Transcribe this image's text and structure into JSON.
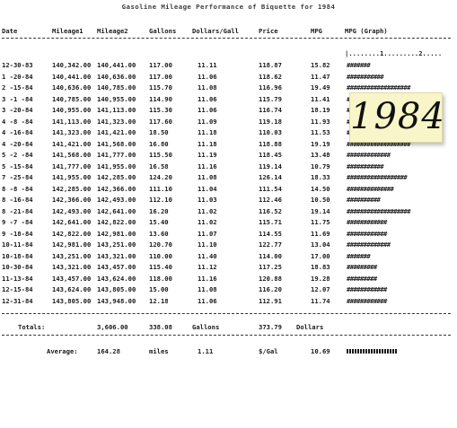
{
  "title": "Gasoline Mileage Performance of Biquette for 1984",
  "headers": [
    "Date",
    "Mileage1",
    "Mileage2",
    "Gallons",
    "Dollars/Gall",
    "Price",
    "MPG",
    "MPG (Graph)"
  ],
  "graph_axis": "|........1.........2.....",
  "rows": [
    [
      "12-30-83",
      "140,342.00",
      "140,441.00",
      "117.00",
      "11.11",
      "118.87",
      "15.82",
      "#######"
    ],
    [
      "1 -20-84",
      "140,441.00",
      "140,636.00",
      "117.00",
      "11.06",
      "118.62",
      "11.47",
      "###########"
    ],
    [
      "2 -15-84",
      "140,636.00",
      "140,785.00",
      "115.70",
      "11.08",
      "116.96",
      "19.49",
      "###################"
    ],
    [
      "3 -1 -84",
      "140,785.00",
      "140,955.00",
      "114.90",
      "11.06",
      "115.79",
      "11.41",
      "###########"
    ],
    [
      "3 -20-84",
      "140,955.00",
      "141,113.00",
      "115.30",
      "11.06",
      "116.74",
      "18.19",
      "##################"
    ],
    [
      "4 -8 -84",
      "141,113.00",
      "141,323.00",
      "117.60",
      "11.09",
      "119.18",
      "11.93",
      "############"
    ],
    [
      "4 -16-84",
      "141,323.00",
      "141,421.00",
      "18.50",
      "11.18",
      "110.03",
      "11.53",
      "############"
    ],
    [
      "4 -20-84",
      "141,421.00",
      "141,568.00",
      "16.80",
      "11.18",
      "118.88",
      "19.19",
      "###################"
    ],
    [
      "5 -2 -84",
      "141,568.00",
      "141,777.00",
      "115.50",
      "11.19",
      "118.45",
      "13.48",
      "#############"
    ],
    [
      "5 -15-84",
      "141,777.00",
      "141,955.00",
      "16.58",
      "11.16",
      "119.14",
      "10.79",
      "###########"
    ],
    [
      "7 -25-84",
      "141,955.00",
      "142,285.00",
      "124.20",
      "11.08",
      "126.14",
      "18.33",
      "##################"
    ],
    [
      "8 -8 -84",
      "142,285.00",
      "142,366.00",
      "111.10",
      "11.04",
      "111.54",
      "14.50",
      "##############"
    ],
    [
      "8 -16-84",
      "142,366.00",
      "142,493.00",
      "112.10",
      "11.03",
      "112.46",
      "10.50",
      "##########"
    ],
    [
      "8 -21-84",
      "142,493.00",
      "142,641.00",
      "16.20",
      "11.02",
      "116.52",
      "19.14",
      "###################"
    ],
    [
      "9 -7 -84",
      "142,641.00",
      "142,822.00",
      "15.40",
      "11.02",
      "115.71",
      "11.75",
      "############"
    ],
    [
      "9 -18-84",
      "142,822.00",
      "142,981.00",
      "13.60",
      "11.07",
      "114.55",
      "11.69",
      "############"
    ],
    [
      "10-11-84",
      "142,981.00",
      "143,251.00",
      "120.70",
      "11.10",
      "122.77",
      "13.04",
      "#############"
    ],
    [
      "10-18-84",
      "143,251.00",
      "143,321.00",
      "110.00",
      "11.40",
      "114.00",
      "17.00",
      "#######"
    ],
    [
      "10-30-84",
      "143,321.00",
      "143,457.00",
      "115.40",
      "11.12",
      "117.25",
      "18.83",
      "#########"
    ],
    [
      "11-13-84",
      "143,457.00",
      "143,624.00",
      "118.00",
      "11.16",
      "120.88",
      "19.28",
      "#########"
    ],
    [
      "12-15-84",
      "143,624.00",
      "143,805.00",
      "15.00",
      "11.08",
      "116.20",
      "12.07",
      "############"
    ],
    [
      "12-31-84",
      "143,805.00",
      "143,948.00",
      "12.18",
      "11.06",
      "112.91",
      "11.74",
      "############"
    ]
  ],
  "totals": {
    "label": "Totals:",
    "miles": "3,606.00",
    "gallons": "338.08",
    "gallons_unit": "Gallons",
    "dollars": "373.79",
    "dollars_unit": "Dollars"
  },
  "averages": {
    "label": "Average:",
    "miles": "164.28",
    "miles_unit": "miles",
    "dollars_per_gal": "1.11",
    "dollars_unit": "$/Gal",
    "mpg": "10.69",
    "bar_units": 11
  },
  "note": {
    "text": "1984",
    "background": "#f8f6c8"
  }
}
